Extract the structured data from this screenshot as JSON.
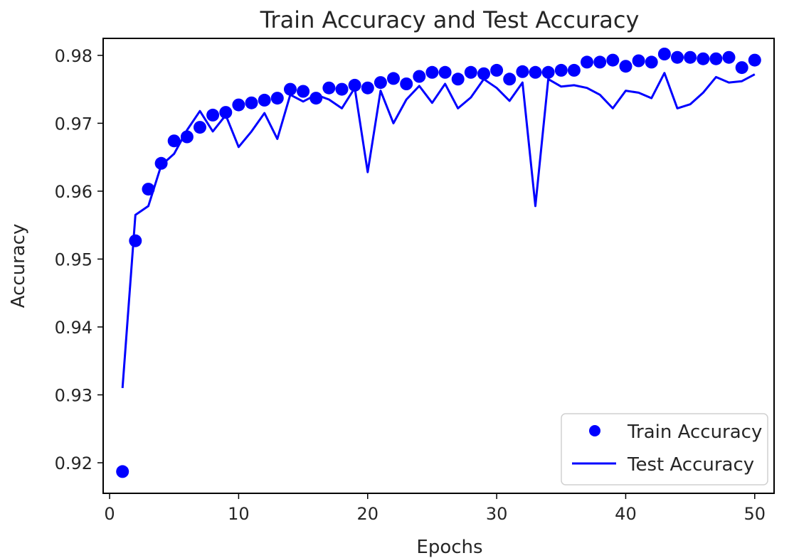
{
  "chart_data": {
    "type": "line",
    "title": "Train Accuracy and Test Accuracy",
    "xlabel": "Epochs",
    "ylabel": "Accuracy",
    "xlim": [
      -0.5,
      51.5
    ],
    "ylim": [
      0.9155,
      0.9825
    ],
    "xticks": [
      0,
      10,
      20,
      30,
      40,
      50
    ],
    "yticks": [
      0.92,
      0.93,
      0.94,
      0.95,
      0.96,
      0.97,
      0.98
    ],
    "grid": false,
    "legend_position": "lower right",
    "x": [
      1,
      2,
      3,
      4,
      5,
      6,
      7,
      8,
      9,
      10,
      11,
      12,
      13,
      14,
      15,
      16,
      17,
      18,
      19,
      20,
      21,
      22,
      23,
      24,
      25,
      26,
      27,
      28,
      29,
      30,
      31,
      32,
      33,
      34,
      35,
      36,
      37,
      38,
      39,
      40,
      41,
      42,
      43,
      44,
      45,
      46,
      47,
      48,
      49,
      50
    ],
    "series": [
      {
        "name": "Train Accuracy",
        "style": "markers",
        "color": "#0000ff",
        "values": [
          0.9187,
          0.9527,
          0.9603,
          0.9641,
          0.9674,
          0.968,
          0.9694,
          0.9712,
          0.9716,
          0.9727,
          0.973,
          0.9734,
          0.9737,
          0.975,
          0.9747,
          0.9737,
          0.9752,
          0.975,
          0.9756,
          0.9752,
          0.976,
          0.9766,
          0.9758,
          0.9769,
          0.9775,
          0.9775,
          0.9765,
          0.9775,
          0.9773,
          0.9778,
          0.9765,
          0.9776,
          0.9775,
          0.9775,
          0.9778,
          0.9778,
          0.979,
          0.979,
          0.9793,
          0.9784,
          0.9792,
          0.979,
          0.9802,
          0.9797,
          0.9797,
          0.9795,
          0.9795,
          0.9797,
          0.9782,
          0.9793
        ]
      },
      {
        "name": "Test Accuracy",
        "style": "line",
        "color": "#0000ff",
        "values": [
          0.931,
          0.9565,
          0.9578,
          0.9638,
          0.9655,
          0.969,
          0.9718,
          0.9688,
          0.9712,
          0.9665,
          0.9688,
          0.9715,
          0.9677,
          0.9742,
          0.9732,
          0.9742,
          0.9735,
          0.9722,
          0.9752,
          0.9628,
          0.9748,
          0.97,
          0.9735,
          0.9755,
          0.973,
          0.9758,
          0.9722,
          0.9738,
          0.9765,
          0.9752,
          0.9733,
          0.976,
          0.9578,
          0.9765,
          0.9754,
          0.9756,
          0.9752,
          0.9742,
          0.9722,
          0.9748,
          0.9745,
          0.9737,
          0.9774,
          0.9722,
          0.9728,
          0.9745,
          0.9768,
          0.976,
          0.9762,
          0.9772
        ]
      }
    ]
  }
}
